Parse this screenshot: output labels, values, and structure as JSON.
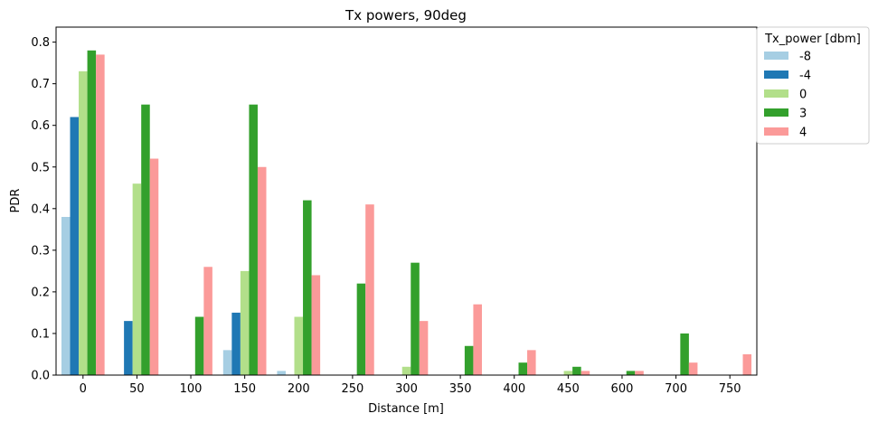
{
  "chart_data": {
    "type": "bar",
    "title": "Tx powers, 90deg",
    "xlabel": "Distance [m]",
    "ylabel": "PDR",
    "ylim": [
      0,
      0.82
    ],
    "yticks": [
      "0.0",
      "0.1",
      "0.2",
      "0.3",
      "0.4",
      "0.5",
      "0.6",
      "0.7",
      "0.8"
    ],
    "categories": [
      "0",
      "50",
      "100",
      "150",
      "200",
      "250",
      "300",
      "350",
      "400",
      "450",
      "600",
      "700",
      "750"
    ],
    "legend": {
      "title": "Tx_power [dbm]",
      "position": "outside top-right"
    },
    "series": [
      {
        "name": "-8",
        "color": "#a6cee3",
        "values": [
          0.38,
          0,
          0,
          0.06,
          0.01,
          0,
          0,
          0,
          0,
          0,
          0,
          0,
          0
        ]
      },
      {
        "name": "-4",
        "color": "#1f78b4",
        "values": [
          0.62,
          0.13,
          0,
          0.15,
          0,
          0,
          0,
          0,
          0,
          0,
          0,
          0,
          0
        ]
      },
      {
        "name": "0",
        "color": "#b2df8a",
        "values": [
          0.73,
          0.46,
          0,
          0.25,
          0.14,
          0,
          0.02,
          0,
          0,
          0.01,
          0,
          0,
          0
        ]
      },
      {
        "name": "3",
        "color": "#33a02c",
        "values": [
          0.78,
          0.65,
          0.14,
          0.65,
          0.42,
          0.22,
          0.27,
          0.07,
          0.03,
          0.02,
          0.01,
          0.1,
          0
        ]
      },
      {
        "name": "4",
        "color": "#fb9a99",
        "values": [
          0.77,
          0.52,
          0.26,
          0.5,
          0.24,
          0.41,
          0.13,
          0.17,
          0.06,
          0.01,
          0.01,
          0.03,
          0.05
        ]
      }
    ]
  }
}
